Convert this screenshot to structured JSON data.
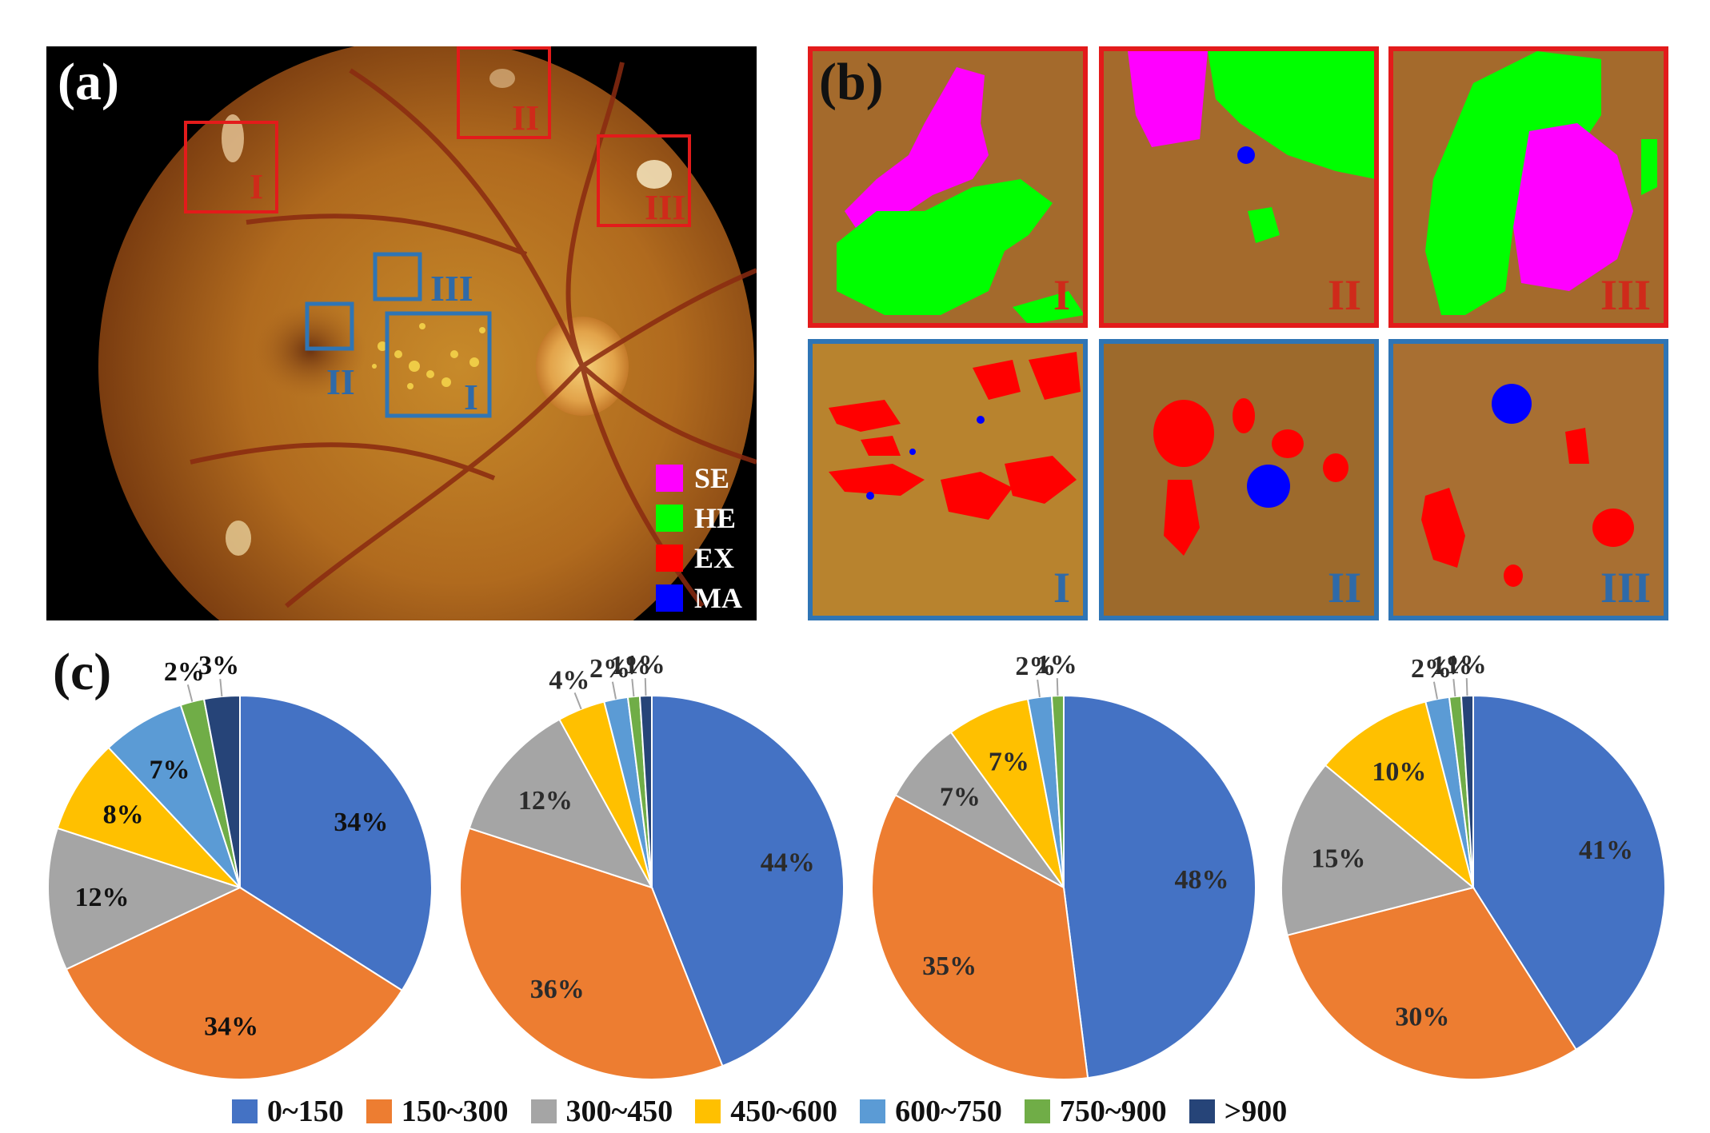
{
  "panels": {
    "a_label": "(a)",
    "b_label": "(b)",
    "c_label": "(c)"
  },
  "fundus_regions": {
    "red": [
      "I",
      "II",
      "III"
    ],
    "blue": [
      "I",
      "II",
      "III"
    ]
  },
  "lesion_legend": [
    {
      "code": "SE",
      "color": "#ff00ff"
    },
    {
      "code": "HE",
      "color": "#00ff00"
    },
    {
      "code": "EX",
      "color": "#ff0000"
    },
    {
      "code": "MA",
      "color": "#0000ff"
    }
  ],
  "zoom_panels": {
    "red": [
      "I",
      "II",
      "III"
    ],
    "blue": [
      "I",
      "II",
      "III"
    ]
  },
  "chart_data": [
    {
      "type": "pie",
      "categories": [
        "0~150",
        "150~300",
        "300~450",
        "450~600",
        "600~750",
        "750~900",
        ">900"
      ],
      "values": [
        34,
        34,
        12,
        8,
        7,
        2,
        3
      ],
      "labels": [
        "34%",
        "34%",
        "12%",
        "8%",
        "7%",
        "2%",
        "3%"
      ]
    },
    {
      "type": "pie",
      "categories": [
        "0~150",
        "150~300",
        "300~450",
        "450~600",
        "600~750",
        "750~900",
        ">900"
      ],
      "values": [
        44,
        36,
        12,
        4,
        2,
        1,
        1
      ],
      "labels": [
        "44%",
        "36%",
        "12%",
        "4%",
        "2%",
        "1%",
        "1%"
      ]
    },
    {
      "type": "pie",
      "categories": [
        "0~150",
        "150~300",
        "300~450",
        "450~600",
        "600~750",
        "750~900"
      ],
      "values": [
        48,
        35,
        7,
        7,
        2,
        1
      ],
      "labels": [
        "48%",
        "35%",
        "7%",
        "7%",
        "2%",
        "1%"
      ]
    },
    {
      "type": "pie",
      "categories": [
        "0~150",
        "150~300",
        "300~450",
        "450~600",
        "600~750",
        "750~900",
        ">900"
      ],
      "values": [
        41,
        30,
        15,
        10,
        2,
        1,
        1
      ],
      "labels": [
        "41%",
        "30%",
        "15%",
        "10%",
        "2%",
        "1%",
        "1%"
      ]
    }
  ],
  "pie_legend": [
    {
      "label": "0~150",
      "color": "#4472c4"
    },
    {
      "label": "150~300",
      "color": "#ed7d31"
    },
    {
      "label": "300~450",
      "color": "#a5a5a5"
    },
    {
      "label": "450~600",
      "color": "#ffc000"
    },
    {
      "label": "600~750",
      "color": "#5b9bd5"
    },
    {
      "label": "750~900",
      "color": "#70ad47"
    },
    {
      "label": ">900",
      "color": "#264478"
    }
  ]
}
